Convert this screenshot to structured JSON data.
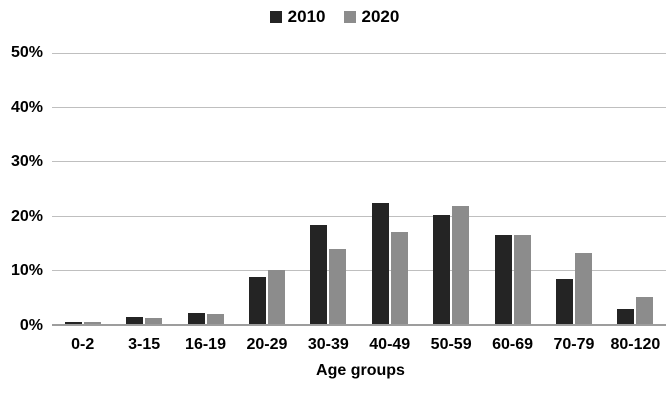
{
  "chart_data": {
    "type": "bar",
    "title": "",
    "categories": [
      "0-2",
      "3-15",
      "16-19",
      "20-29",
      "30-39",
      "40-49",
      "50-59",
      "60-69",
      "70-79",
      "80-120"
    ],
    "series": [
      {
        "name": "2010",
        "color": "#242424",
        "values": [
          0.3,
          1.3,
          2.1,
          8.6,
          18.2,
          22.4,
          20.2,
          16.4,
          8.3,
          2.7
        ]
      },
      {
        "name": "2020",
        "color": "#8c8c8c",
        "values": [
          0.3,
          1.1,
          1.8,
          10,
          13.8,
          17,
          21.8,
          16.5,
          13.1,
          4.9
        ]
      }
    ],
    "xlabel": "Age groups",
    "ylabel": "",
    "ylim": [
      0,
      50
    ],
    "ytick_step": 10,
    "ytick_labels": [
      "0%",
      "10%",
      "20%",
      "30%",
      "40%",
      "50%"
    ],
    "legend_position": "top-center",
    "grid": "horizontal",
    "colors": {
      "gridline": "#bfbfbf",
      "axis_line": "#9d9d9d",
      "text": "#000000",
      "background": "#ffffff"
    }
  }
}
